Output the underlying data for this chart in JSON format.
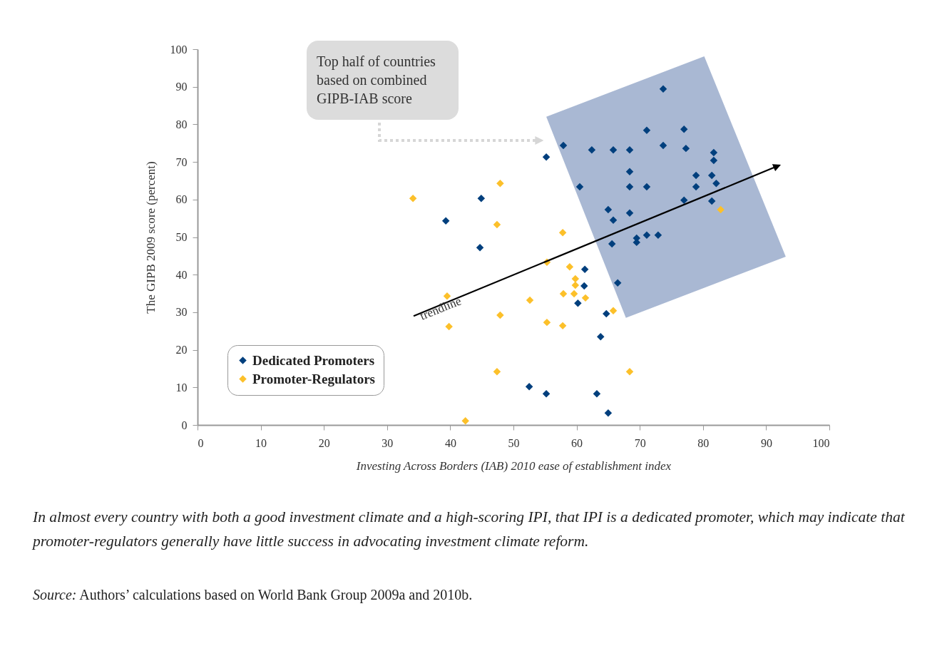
{
  "chart_data": {
    "type": "scatter",
    "xlabel": "Investing Across Borders (IAB) 2010 ease of establishment index",
    "ylabel": "The GIPB 2009 score (percent)",
    "xlim": [
      0,
      100
    ],
    "ylim": [
      0,
      100
    ],
    "xticks": [
      0,
      10,
      20,
      30,
      40,
      50,
      60,
      70,
      80,
      90,
      100
    ],
    "yticks": [
      0,
      10,
      20,
      30,
      40,
      50,
      60,
      70,
      80,
      90,
      100
    ],
    "grid": false,
    "legend": "bottom left",
    "marker": "diamond",
    "series": [
      {
        "name": "Dedicated Promoters",
        "color": "#003f7d",
        "x": [
          55.2,
          57.9,
          62.4,
          65.8,
          68.4,
          73.7,
          71.1,
          77,
          73.7,
          77.3,
          81.7,
          81.7,
          68.4,
          78.9,
          81.4,
          60.5,
          68.4,
          71.1,
          78.9,
          82.1,
          77,
          81.4,
          65,
          68.4,
          65.8,
          44.9,
          39.3,
          44.7,
          65.6,
          69.5,
          69.5,
          71.1,
          72.9,
          61.3,
          66.5,
          61.2,
          60.2,
          64.7,
          63.8,
          52.5,
          55.2,
          63.2,
          65
        ],
        "values": [
          71.3,
          74.4,
          73.2,
          73.2,
          73.2,
          89.4,
          78.4,
          78.7,
          74.4,
          73.6,
          72.5,
          70.4,
          67.4,
          66.4,
          66.4,
          63.4,
          63.4,
          63.4,
          63.4,
          64.3,
          59.8,
          59.6,
          57.3,
          56.4,
          54.5,
          60.3,
          54.3,
          47.2,
          48.2,
          49.7,
          48.6,
          50.5,
          50.5,
          41.4,
          37.8,
          37,
          32.4,
          29.6,
          23.5,
          10.2,
          8.3,
          8.3,
          3.2
        ]
      },
      {
        "name": "Promoter-Regulators",
        "color": "#fcc02a",
        "x": [
          34.1,
          47.9,
          47.4,
          57.8,
          55.3,
          58.9,
          59.8,
          59.8,
          59.6,
          57.9,
          61.4,
          39.5,
          52.6,
          65.8,
          47.9,
          55.3,
          57.8,
          39.8,
          47.4,
          68.4,
          42.4,
          82.8
        ],
        "values": [
          60.3,
          64.3,
          53.3,
          51.2,
          43.3,
          42.1,
          38.9,
          37.2,
          34.9,
          34.9,
          33.8,
          34.3,
          33.2,
          30.4,
          29.2,
          27.3,
          26.4,
          26.2,
          14.2,
          14.2,
          1.1,
          57.3
        ]
      }
    ],
    "annotations": [
      "trendline",
      "Top half of countries based on combined GIPB-IAB score",
      "In almost every country with both a good investment climate and a high-scoring IPI, that IPI is a dedicated promoter, which may indicate that promoter-regulators generally have little success in advocating investment climate reform.",
      "Source: Authors’ calculations based on World Bank Group 2009a and 2010b."
    ]
  }
}
